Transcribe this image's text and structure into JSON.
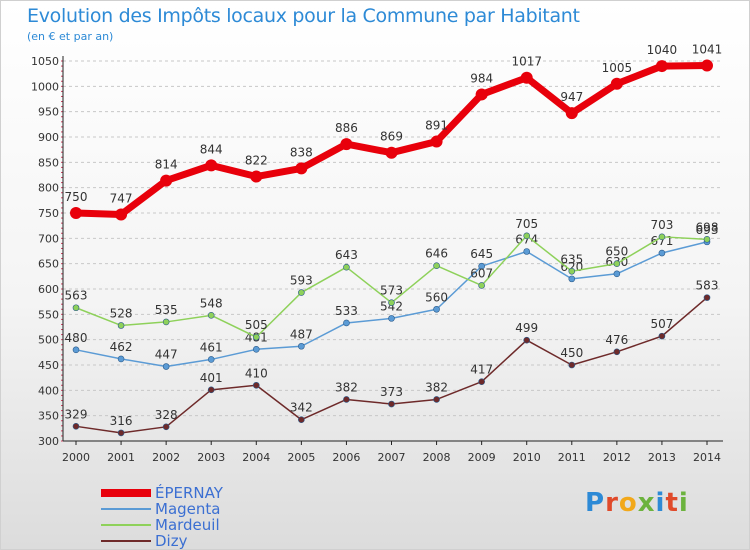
{
  "header": {
    "title": "Evolution des Impôts locaux pour la Commune par Habitant",
    "subtitle": "(en € et par an)"
  },
  "logo": {
    "text": "Proxiti",
    "letters": [
      {
        "ch": "P",
        "color": "#2d8ad6"
      },
      {
        "ch": "r",
        "color": "#e04a2a"
      },
      {
        "ch": "o",
        "color": "#f2a81a"
      },
      {
        "ch": "x",
        "color": "#6cb33e"
      },
      {
        "ch": "i",
        "color": "#2d8ad6"
      },
      {
        "ch": "t",
        "color": "#e04a2a"
      },
      {
        "ch": "i",
        "color": "#6cb33e"
      }
    ]
  },
  "chart_data": {
    "type": "line",
    "title": "Evolution des Impôts locaux pour la Commune par Habitant",
    "subtitle": "(en € et par an)",
    "xlabel": "",
    "ylabel": "",
    "x": [
      "2000",
      "2001",
      "2002",
      "2003",
      "2004",
      "2005",
      "2006",
      "2007",
      "2008",
      "2009",
      "2010",
      "2011",
      "2012",
      "2013",
      "2014"
    ],
    "ylim": [
      300,
      1050
    ],
    "yticks": [
      300,
      350,
      400,
      450,
      500,
      550,
      600,
      650,
      700,
      750,
      800,
      850,
      900,
      950,
      1000,
      1050
    ],
    "grid": "horizontal dashed",
    "legend_placement": "bottom-left",
    "series": [
      {
        "name": "ÉPERNAY",
        "color": "#e8000b",
        "thick": true,
        "values": [
          750,
          747,
          814,
          844,
          822,
          838,
          886,
          869,
          891,
          984,
          1017,
          947,
          1005,
          1040,
          1041
        ]
      },
      {
        "name": "Magenta",
        "color": "#5b9bd5",
        "thick": false,
        "values": [
          480,
          462,
          447,
          461,
          481,
          487,
          533,
          542,
          560,
          645,
          674,
          620,
          630,
          671,
          693
        ]
      },
      {
        "name": "Mardeuil",
        "color": "#8ed15a",
        "thick": false,
        "values": [
          563,
          528,
          535,
          548,
          505,
          593,
          643,
          573,
          646,
          607,
          705,
          635,
          650,
          703,
          698
        ]
      },
      {
        "name": "Dizy",
        "color": "#6e2a2a",
        "thick": false,
        "values": [
          329,
          316,
          328,
          401,
          410,
          342,
          382,
          373,
          382,
          417,
          499,
          450,
          476,
          507,
          583
        ]
      }
    ]
  }
}
